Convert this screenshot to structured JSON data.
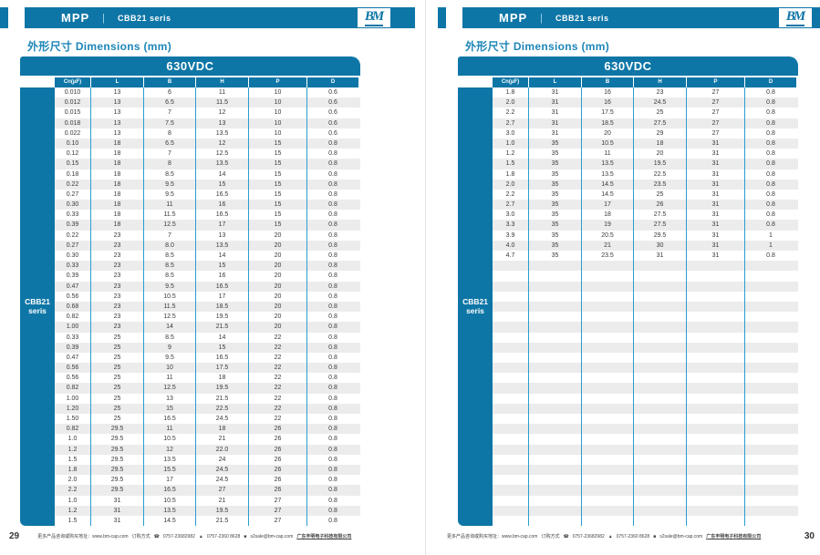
{
  "colors": {
    "brand_blue": "#0e76a6",
    "divider_blue": "#2a9dcf",
    "row_stripe": "#ececec",
    "title_teal": "#1d86b8"
  },
  "logo_text": "BM",
  "pages": [
    {
      "page_number": "29",
      "header": {
        "product": "MPP",
        "series": "CBB21 seris"
      },
      "section_title": "外形尺寸 Dimensions (mm)",
      "table": {
        "voltage": "630VDC",
        "sidebar_line1": "CBB21",
        "sidebar_line2": "seris",
        "columns": [
          "Cn(μF)",
          "L",
          "B",
          "H",
          "P",
          "D"
        ],
        "empty_rows": 0,
        "rows": [
          [
            "0.010",
            "13",
            "6",
            "11",
            "10",
            "0.6"
          ],
          [
            "0.012",
            "13",
            "6.5",
            "11.5",
            "10",
            "0.6"
          ],
          [
            "0.015",
            "13",
            "7",
            "12",
            "10",
            "0.6"
          ],
          [
            "0.018",
            "13",
            "7.5",
            "13",
            "10",
            "0.6"
          ],
          [
            "0.022",
            "13",
            "8",
            "13.5",
            "10",
            "0.6"
          ],
          [
            "0.10",
            "18",
            "6.5",
            "12",
            "15",
            "0.8"
          ],
          [
            "0.12",
            "18",
            "7",
            "12.5",
            "15",
            "0.8"
          ],
          [
            "0.15",
            "18",
            "8",
            "13.5",
            "15",
            "0.8"
          ],
          [
            "0.18",
            "18",
            "8.5",
            "14",
            "15",
            "0.8"
          ],
          [
            "0.22",
            "18",
            "9.5",
            "15",
            "15",
            "0.8"
          ],
          [
            "0.27",
            "18",
            "9.5",
            "16.5",
            "15",
            "0.8"
          ],
          [
            "0.30",
            "18",
            "11",
            "16",
            "15",
            "0.8"
          ],
          [
            "0.33",
            "18",
            "11.5",
            "16.5",
            "15",
            "0.8"
          ],
          [
            "0.39",
            "18",
            "12.5",
            "17",
            "15",
            "0.8"
          ],
          [
            "0.22",
            "23",
            "7",
            "13",
            "20",
            "0.8"
          ],
          [
            "0.27",
            "23",
            "8.0",
            "13.5",
            "20",
            "0.8"
          ],
          [
            "0.30",
            "23",
            "8.5",
            "14",
            "20",
            "0.8"
          ],
          [
            "0.33",
            "23",
            "8.5",
            "15",
            "20",
            "0.8"
          ],
          [
            "0.39",
            "23",
            "8.5",
            "16",
            "20",
            "0.8"
          ],
          [
            "0.47",
            "23",
            "9.5",
            "16.5",
            "20",
            "0.8"
          ],
          [
            "0.56",
            "23",
            "10.5",
            "17",
            "20",
            "0.8"
          ],
          [
            "0.68",
            "23",
            "11.5",
            "18.5",
            "20",
            "0.8"
          ],
          [
            "0.82",
            "23",
            "12.5",
            "19.5",
            "20",
            "0.8"
          ],
          [
            "1.00",
            "23",
            "14",
            "21.5",
            "20",
            "0.8"
          ],
          [
            "0.33",
            "25",
            "8.5",
            "14",
            "22",
            "0.8"
          ],
          [
            "0.39",
            "25",
            "9",
            "15",
            "22",
            "0.8"
          ],
          [
            "0.47",
            "25",
            "9.5",
            "16.5",
            "22",
            "0.8"
          ],
          [
            "0.56",
            "25",
            "10",
            "17.5",
            "22",
            "0.8"
          ],
          [
            "0.56",
            "25",
            "11",
            "18",
            "22",
            "0.8"
          ],
          [
            "0.82",
            "25",
            "12.5",
            "19.5",
            "22",
            "0.8"
          ],
          [
            "1.00",
            "25",
            "13",
            "21.5",
            "22",
            "0.8"
          ],
          [
            "1.20",
            "25",
            "15",
            "22.5",
            "22",
            "0.8"
          ],
          [
            "1.50",
            "25",
            "16.5",
            "24.5",
            "22",
            "0.8"
          ],
          [
            "0.82",
            "29.5",
            "11",
            "18",
            "26",
            "0.8"
          ],
          [
            "1.0",
            "29.5",
            "10.5",
            "21",
            "26",
            "0.8"
          ],
          [
            "1.2",
            "29.5",
            "12",
            "22.0",
            "26",
            "0.8"
          ],
          [
            "1.5",
            "29.5",
            "13.5",
            "24",
            "26",
            "0.8"
          ],
          [
            "1.8",
            "29.5",
            "15.5",
            "24.5",
            "26",
            "0.8"
          ],
          [
            "2.0",
            "29.5",
            "17",
            "24.5",
            "26",
            "0.8"
          ],
          [
            "2.2",
            "29.5",
            "16.5",
            "27",
            "26",
            "0.8"
          ],
          [
            "1.0",
            "31",
            "10.5",
            "21",
            "27",
            "0.8"
          ],
          [
            "1.2",
            "31",
            "13.5",
            "19.5",
            "27",
            "0.8"
          ],
          [
            "1.5",
            "31",
            "14.5",
            "21.5",
            "27",
            "0.8"
          ]
        ]
      },
      "footer": {
        "info": "更多产品咨询或购买地址：www.bm-cap.com",
        "order_label": "订购方式",
        "phone_icon": "☎",
        "phone": "0757-23682982",
        "fax_icon": "▲",
        "fax": "0757-2360 8628",
        "mail_icon": "■",
        "email": "s2sale@bm-cap.com",
        "company": "广东丰明电子科技有限公司"
      }
    },
    {
      "page_number": "30",
      "header": {
        "product": "MPP",
        "series": "CBB21 seris"
      },
      "section_title": "外形尺寸 Dimensions (mm)",
      "table": {
        "voltage": "630VDC",
        "sidebar_line1": "CBB21",
        "sidebar_line2": "seris",
        "columns": [
          "Cn(μF)",
          "L",
          "B",
          "H",
          "P",
          "D"
        ],
        "empty_rows": 26,
        "rows": [
          [
            "1.8",
            "31",
            "16",
            "23",
            "27",
            "0.8"
          ],
          [
            "2.0",
            "31",
            "16",
            "24.5",
            "27",
            "0.8"
          ],
          [
            "2.2",
            "31",
            "17.5",
            "25",
            "27",
            "0.8"
          ],
          [
            "2.7",
            "31",
            "18.5",
            "27.5",
            "27",
            "0.8"
          ],
          [
            "3.0",
            "31",
            "20",
            "29",
            "27",
            "0.8"
          ],
          [
            "1.0",
            "35",
            "10.5",
            "18",
            "31",
            "0.8"
          ],
          [
            "1.2",
            "35",
            "11",
            "20",
            "31",
            "0.8"
          ],
          [
            "1.5",
            "35",
            "13.5",
            "19.5",
            "31",
            "0.8"
          ],
          [
            "1.8",
            "35",
            "13.5",
            "22.5",
            "31",
            "0.8"
          ],
          [
            "2.0",
            "35",
            "14.5",
            "23.5",
            "31",
            "0.8"
          ],
          [
            "2.2",
            "35",
            "14.5",
            "25",
            "31",
            "0.8"
          ],
          [
            "2.7",
            "35",
            "17",
            "26",
            "31",
            "0.8"
          ],
          [
            "3.0",
            "35",
            "18",
            "27.5",
            "31",
            "0.8"
          ],
          [
            "3.3",
            "35",
            "19",
            "27.5",
            "31",
            "0.8"
          ],
          [
            "3.9",
            "35",
            "20.5",
            "29.5",
            "31",
            "1"
          ],
          [
            "4.0",
            "35",
            "21",
            "30",
            "31",
            "1"
          ],
          [
            "4.7",
            "35",
            "23.5",
            "31",
            "31",
            "0.8"
          ]
        ]
      },
      "footer": {
        "info": "更多产品咨询或购买地址：www.bm-cap.com",
        "order_label": "订购方式",
        "phone_icon": "☎",
        "phone": "0757-23682982",
        "fax_icon": "▲",
        "fax": "0757-2360 8628",
        "mail_icon": "■",
        "email": "s2sale@bm-cap.com",
        "company": "广东丰明电子科技有限公司"
      }
    }
  ]
}
